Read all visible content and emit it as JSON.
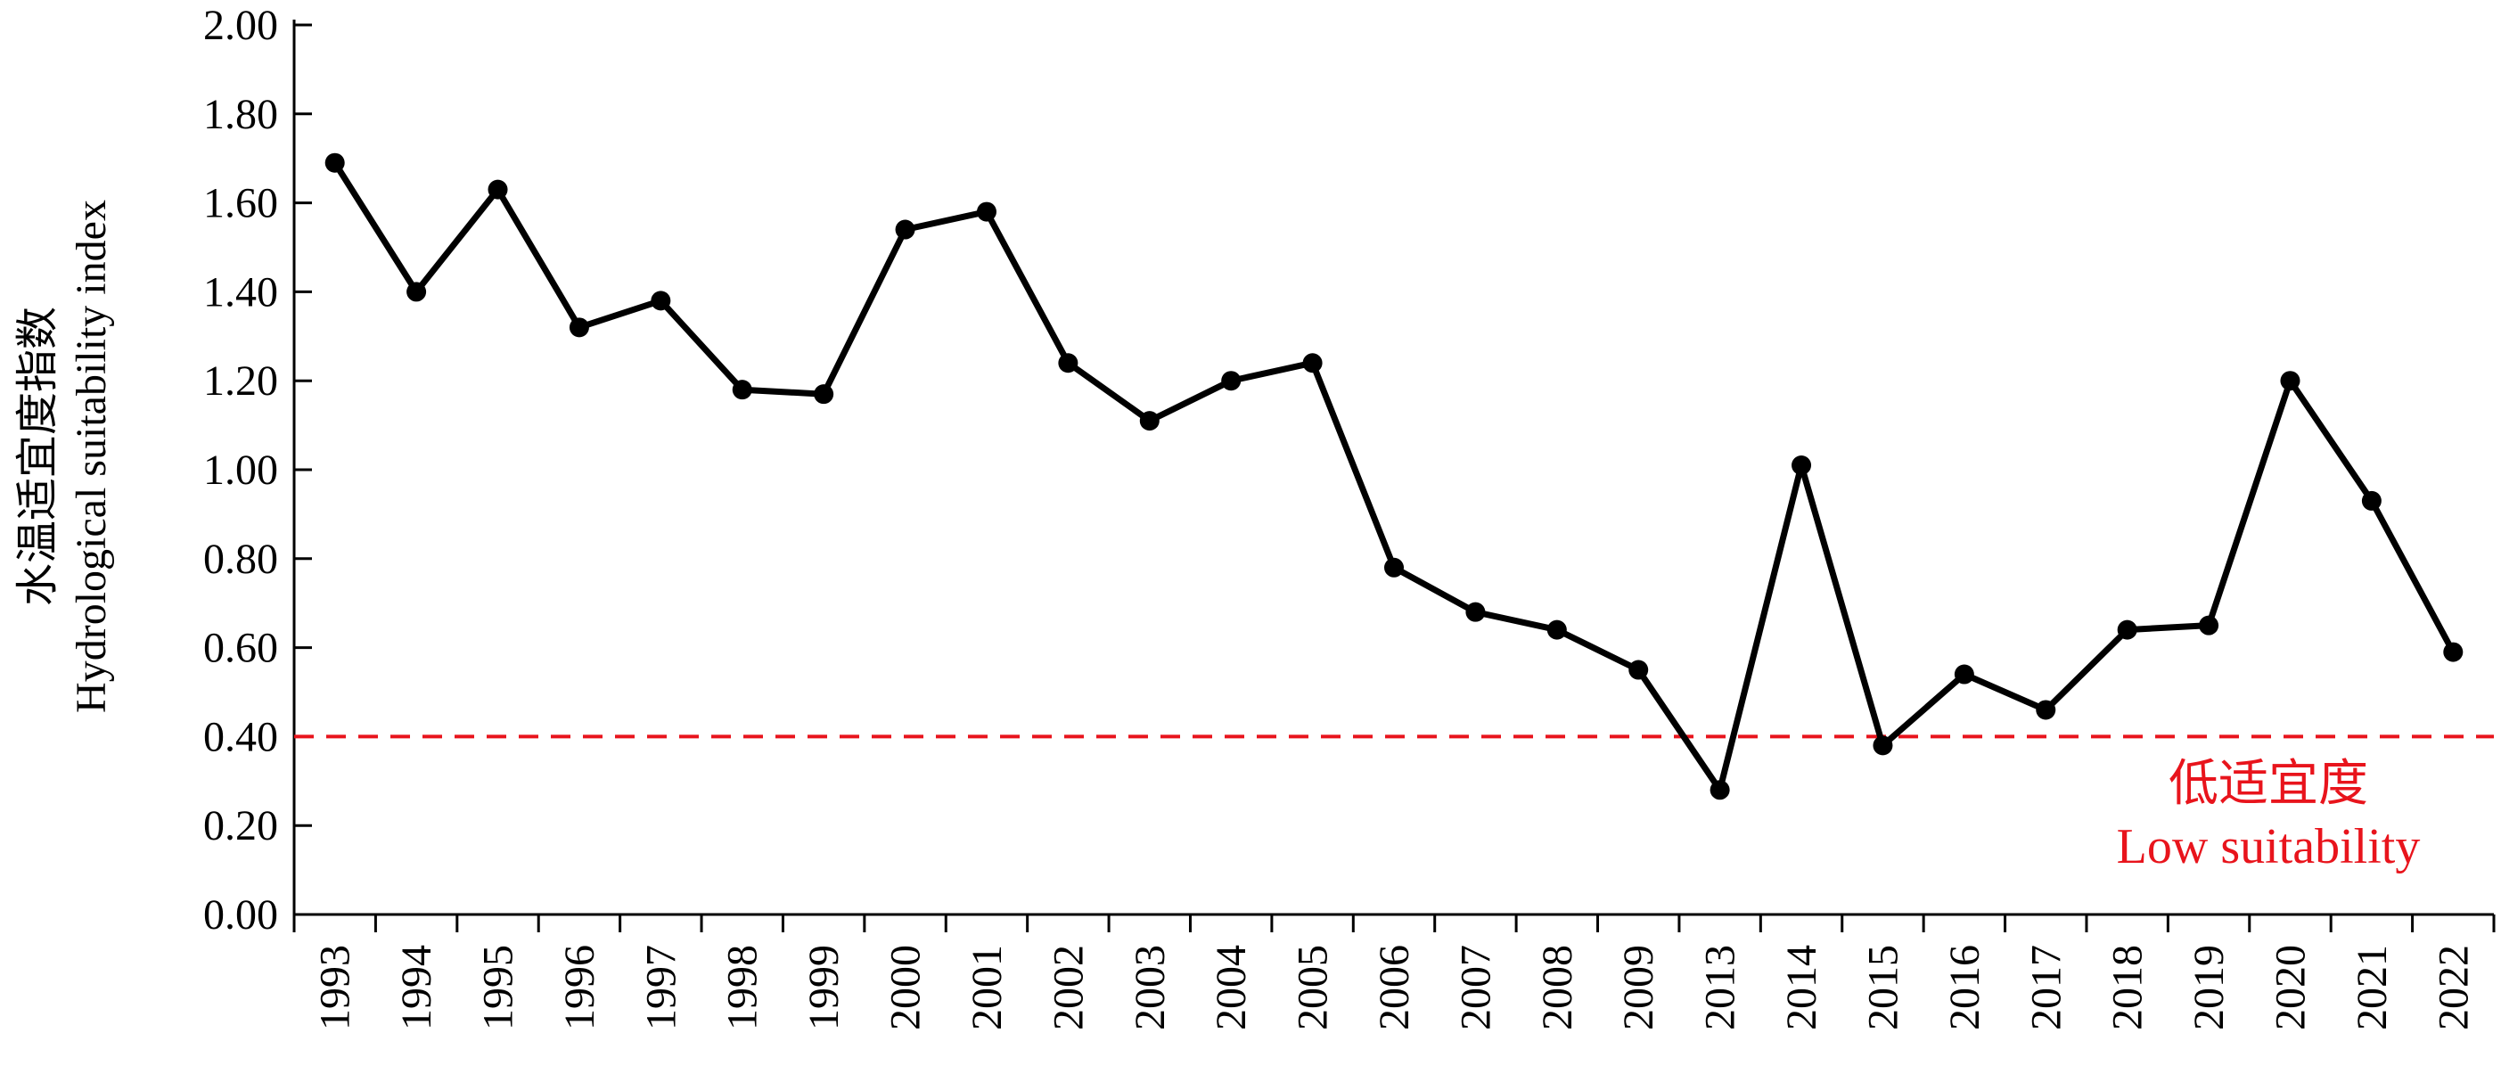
{
  "chart_data": {
    "type": "line",
    "title": "",
    "xlabel": "",
    "ylabel_cn": "水温适宜度指数",
    "ylabel_en": "Hydrological suitability index",
    "ylim": [
      0,
      2
    ],
    "yticks": [
      "0.00",
      "0.20",
      "0.40",
      "0.60",
      "0.80",
      "1.00",
      "1.20",
      "1.40",
      "1.60",
      "1.80",
      "2.00"
    ],
    "categories": [
      "1993",
      "1994",
      "1995",
      "1996",
      "1997",
      "1998",
      "1999",
      "2000",
      "2001",
      "2002",
      "2003",
      "2004",
      "2005",
      "2006",
      "2007",
      "2008",
      "2009",
      "2013",
      "2014",
      "2015",
      "2016",
      "2017",
      "2018",
      "2019",
      "2020",
      "2021",
      "2022"
    ],
    "series": [
      {
        "values": [
          1.69,
          1.4,
          1.63,
          1.32,
          1.38,
          1.18,
          1.17,
          1.54,
          1.58,
          1.24,
          1.11,
          1.2,
          1.24,
          0.78,
          0.68,
          0.64,
          0.55,
          0.28,
          1.01,
          0.38,
          0.54,
          0.46,
          0.64,
          0.65,
          1.2,
          0.93,
          0.59
        ],
        "color": "#000000"
      }
    ],
    "threshold": {
      "value": 0.4,
      "color": "#e8141c",
      "label_cn": "低适宜度",
      "label_en": "Low suitability"
    },
    "grid": false,
    "legend": "none"
  }
}
